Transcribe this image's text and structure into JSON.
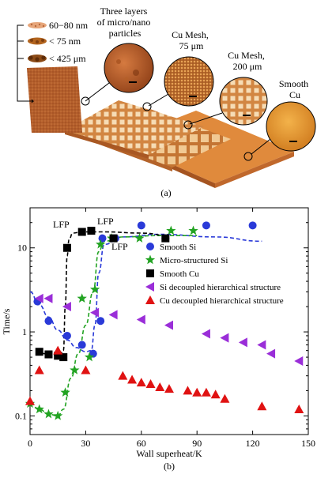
{
  "figure_a": {
    "particle_sizes": [
      "60−80 nm",
      "< 75 nm",
      "< 425 μm"
    ],
    "layers_label": [
      "Three layers",
      "of micro/nano",
      "particles"
    ],
    "mesh75_label": [
      "Cu Mesh,",
      "75 μm"
    ],
    "mesh200_label": [
      "Cu Mesh,",
      "200 μm"
    ],
    "smooth_label": [
      "Smooth",
      "Cu"
    ],
    "caption": "(a)"
  },
  "figure_b": {
    "caption": "(b)",
    "annotations": [
      "LFP",
      "LFP",
      "LFP"
    ]
  },
  "colors": {
    "smooth_si": "#2a3ad8",
    "micro_si": "#22a322",
    "smooth_cu": "#000000",
    "si_dec": "#9a2ed8",
    "cu_dec": "#e01212",
    "copper": "#d0793a",
    "copper_dark": "#a8521e"
  },
  "chart_data": {
    "type": "scatter",
    "xlabel": "Wall superheat/K",
    "ylabel": "Time/s",
    "xlim": [
      0,
      150
    ],
    "ylim": [
      0.06,
      30
    ],
    "yscale": "log",
    "xticks": [
      0,
      30,
      60,
      90,
      120,
      150
    ],
    "yticks": [
      {
        "value": 0.1,
        "label": "0.1"
      },
      {
        "value": 1,
        "label": "1"
      },
      {
        "value": 10,
        "label": "10"
      }
    ],
    "legend_position": "right",
    "series": [
      {
        "name": "Smooth Si",
        "marker": "circle",
        "color": "#2a3ad8",
        "x": [
          4,
          10,
          20,
          28,
          34,
          38,
          39,
          46,
          60,
          73,
          95,
          120
        ],
        "y": [
          2.3,
          1.35,
          0.9,
          0.7,
          0.55,
          1.35,
          13,
          13,
          18.5,
          13,
          18.5,
          18.5
        ]
      },
      {
        "name": "Micro-structured Si",
        "marker": "star",
        "color": "#22a322",
        "x": [
          0,
          5,
          10,
          15,
          19,
          24,
          28,
          32,
          35,
          38,
          44,
          59,
          76,
          88
        ],
        "y": [
          0.14,
          0.12,
          0.105,
          0.1,
          0.19,
          0.35,
          2.5,
          0.5,
          3.2,
          11,
          13,
          13,
          16,
          16
        ]
      },
      {
        "name": "Smooth Cu",
        "marker": "square",
        "color": "#000000",
        "x": [
          5,
          10,
          15,
          18,
          20,
          28,
          33,
          45,
          73
        ],
        "y": [
          0.58,
          0.54,
          0.52,
          0.5,
          10,
          15.5,
          16,
          13,
          13
        ]
      },
      {
        "name": "Si decoupled hierarchical structure",
        "marker": "triangle-left",
        "color": "#9a2ed8",
        "x": [
          5,
          10,
          20,
          35,
          45,
          60,
          75,
          95,
          105,
          115,
          125,
          130,
          145
        ],
        "y": [
          2.5,
          2.5,
          2.0,
          1.7,
          1.6,
          1.4,
          1.2,
          0.95,
          0.85,
          0.75,
          0.7,
          0.55,
          0.45
        ]
      },
      {
        "name": "Cu decoupled hierarchical structure",
        "marker": "triangle-up",
        "color": "#e01212",
        "x": [
          0,
          5,
          15,
          30,
          50,
          55,
          60,
          65,
          70,
          75,
          85,
          90,
          95,
          100,
          105,
          125,
          145
        ],
        "y": [
          0.15,
          0.35,
          0.6,
          0.35,
          0.3,
          0.27,
          0.25,
          0.24,
          0.22,
          0.21,
          0.2,
          0.19,
          0.19,
          0.18,
          0.16,
          0.13,
          0.12
        ]
      }
    ],
    "fit_curves": [
      {
        "color": "#2a3ad8",
        "x": [
          0,
          5,
          10,
          15,
          20,
          25,
          30,
          33,
          35,
          37,
          40,
          50,
          70,
          100,
          125
        ],
        "y": [
          3.0,
          2.1,
          1.5,
          1.05,
          0.8,
          0.65,
          0.58,
          0.6,
          1.2,
          5,
          11,
          13.5,
          14.5,
          13.5,
          12
        ]
      },
      {
        "color": "#22a322",
        "x": [
          0,
          5,
          10,
          15,
          18,
          22,
          26,
          30,
          34,
          37,
          40,
          50,
          70,
          90
        ],
        "y": [
          0.14,
          0.12,
          0.105,
          0.1,
          0.12,
          0.28,
          0.55,
          1.2,
          3.0,
          9,
          12,
          13.5,
          14,
          14
        ]
      },
      {
        "color": "#000000",
        "x": [
          3,
          8,
          12,
          16,
          18,
          19,
          20,
          21,
          23,
          28,
          40,
          60,
          75
        ],
        "y": [
          0.6,
          0.55,
          0.53,
          0.52,
          0.6,
          2,
          8,
          12.5,
          15,
          15.5,
          15.5,
          15,
          14
        ]
      }
    ]
  }
}
